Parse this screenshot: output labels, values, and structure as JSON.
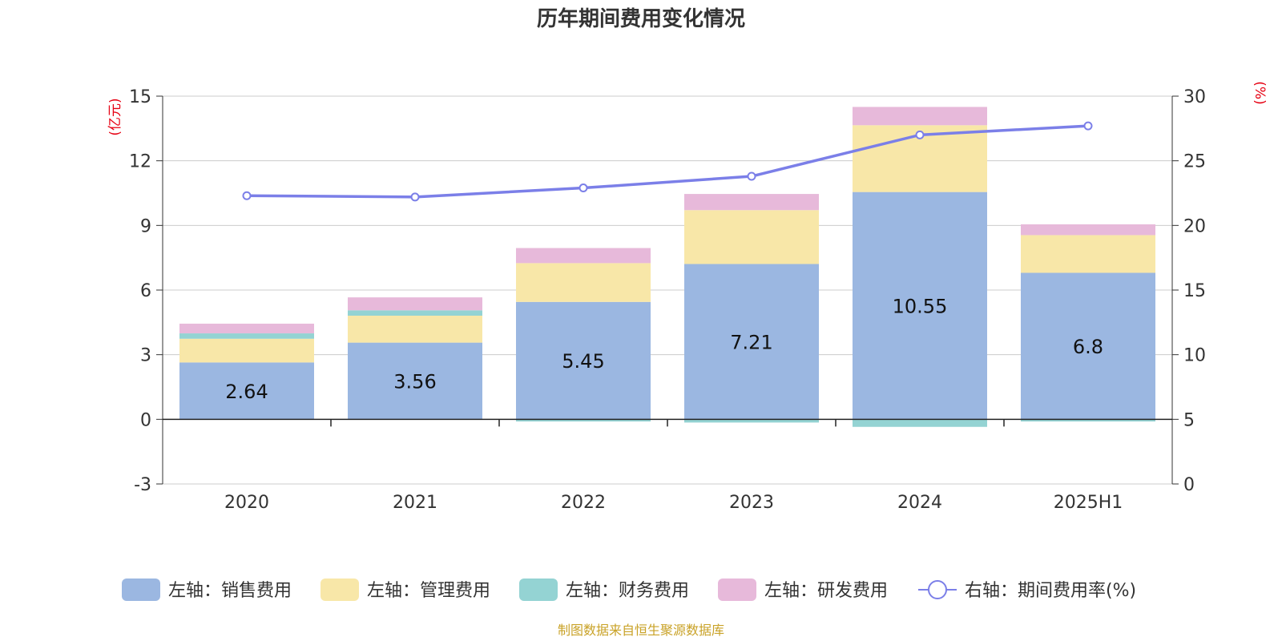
{
  "chart_data": {
    "type": "bar",
    "title": "历年期间费用变化情况",
    "categories": [
      "2020",
      "2021",
      "2022",
      "2023",
      "2024",
      "2025H1"
    ],
    "left_axis": {
      "unit_label": "(亿元)",
      "min": -3,
      "max": 15,
      "ticks": [
        "15",
        "12",
        "9",
        "6",
        "3",
        "0",
        "-3"
      ]
    },
    "right_axis": {
      "unit_label": "(%)",
      "min": 0,
      "max": 30,
      "ticks": [
        "30",
        "25",
        "20",
        "15",
        "10",
        "5",
        "0"
      ]
    },
    "series": [
      {
        "name": "左轴：销售费用",
        "type": "bar",
        "color": "#9BB7E1",
        "values": [
          2.64,
          3.56,
          5.45,
          7.21,
          10.55,
          6.8
        ]
      },
      {
        "name": "左轴：管理费用",
        "type": "bar",
        "color": "#F8E7A8",
        "values": [
          1.1,
          1.25,
          1.8,
          2.5,
          3.1,
          1.75
        ]
      },
      {
        "name": "左轴：财务费用",
        "type": "bar",
        "color": "#94D3D3",
        "values": [
          0.25,
          0.25,
          -0.1,
          -0.15,
          -0.35,
          -0.1
        ]
      },
      {
        "name": "左轴：研发费用",
        "type": "bar",
        "color": "#E7B9DA",
        "values": [
          0.45,
          0.6,
          0.7,
          0.75,
          0.85,
          0.5
        ]
      },
      {
        "name": "右轴：期间费用率(%)",
        "type": "line",
        "axis": "right",
        "color": "#7B7FE8",
        "values": [
          22.3,
          22.2,
          22.9,
          23.8,
          27.0,
          27.7
        ]
      }
    ],
    "bar_labels": [
      "2.64",
      "3.56",
      "5.45",
      "7.21",
      "10.55",
      "6.8"
    ],
    "grid": true,
    "legend_position": "bottom"
  },
  "source_note": "制图数据来自恒生聚源数据库"
}
